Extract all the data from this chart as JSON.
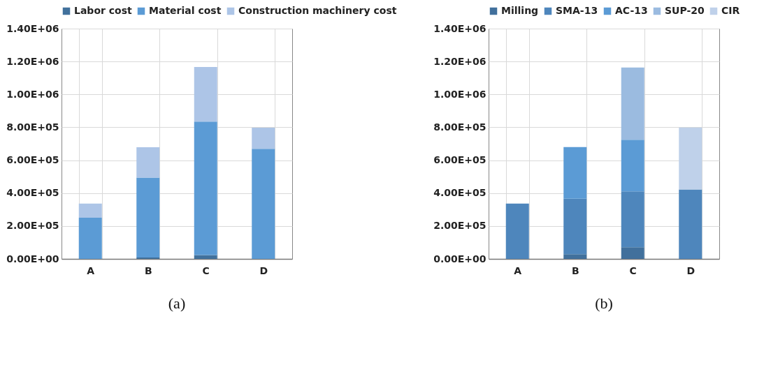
{
  "chart_data": [
    {
      "type": "bar",
      "stacked": true,
      "categories": [
        "A",
        "B",
        "C",
        "D"
      ],
      "series": [
        {
          "name": "Labor cost",
          "color": "#41719c",
          "values": [
            0,
            8000,
            23000,
            0
          ]
        },
        {
          "name": "Material cost",
          "color": "#5b9bd5",
          "values": [
            250000,
            486000,
            812000,
            669000
          ]
        },
        {
          "name": "Construction machinery cost",
          "color": "#adc5e7",
          "values": [
            86000,
            185000,
            332000,
            129000
          ]
        }
      ],
      "ylim": [
        0,
        1400000
      ],
      "yticks": [
        {
          "value": 0,
          "label": "0.00E+00"
        },
        {
          "value": 200000,
          "label": "2.00E+05"
        },
        {
          "value": 400000,
          "label": "4.00E+05"
        },
        {
          "value": 600000,
          "label": "6.00E+05"
        },
        {
          "value": 800000,
          "label": "8.00E+05"
        },
        {
          "value": 1000000,
          "label": "1.00E+06"
        },
        {
          "value": 1200000,
          "label": "1.20E+06"
        },
        {
          "value": 1400000,
          "label": "1.40E+06"
        }
      ],
      "grid": true,
      "legend": "top",
      "annotations": [
        "(a)"
      ]
    },
    {
      "type": "bar",
      "stacked": true,
      "categories": [
        "A",
        "B",
        "C",
        "D"
      ],
      "series": [
        {
          "name": "Milling",
          "color": "#41709c",
          "values": [
            0,
            29000,
            71000,
            0
          ]
        },
        {
          "name": "SMA-13",
          "color": "#4e86bc",
          "values": [
            336000,
            337000,
            339000,
            422000
          ]
        },
        {
          "name": "AC-13",
          "color": "#5b9bd5",
          "values": [
            0,
            314000,
            314000,
            0
          ]
        },
        {
          "name": "SUP-20",
          "color": "#9bbbe0",
          "values": [
            0,
            0,
            440000,
            0
          ]
        },
        {
          "name": "CIR",
          "color": "#bfd1ea",
          "values": [
            0,
            0,
            0,
            377000
          ]
        }
      ],
      "ylim": [
        0,
        1400000
      ],
      "yticks": [
        {
          "value": 0,
          "label": "0.00E+00"
        },
        {
          "value": 200000,
          "label": "2.00E+05"
        },
        {
          "value": 400000,
          "label": "4.00E+05"
        },
        {
          "value": 600000,
          "label": "6.00E+05"
        },
        {
          "value": 800000,
          "label": "8.00E+05"
        },
        {
          "value": 1000000,
          "label": "1.00E+06"
        },
        {
          "value": 1200000,
          "label": "1.20E+06"
        },
        {
          "value": 1400000,
          "label": "1.40E+06"
        }
      ],
      "grid": true,
      "legend": "top",
      "annotations": [
        "(b)"
      ]
    }
  ]
}
